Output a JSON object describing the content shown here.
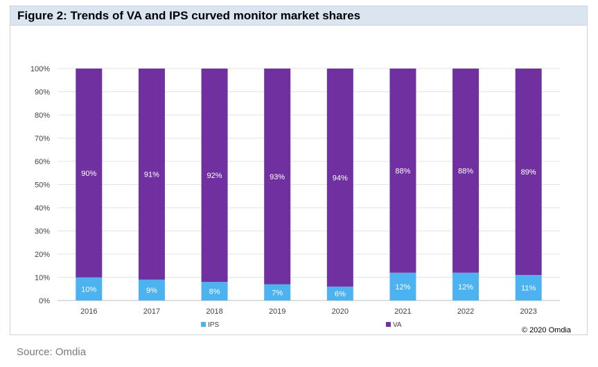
{
  "page": {
    "source": "Source: Omdia"
  },
  "chart_data": {
    "type": "bar",
    "stacked": true,
    "title": "Figure 2: Trends of VA and IPS curved monitor market shares",
    "xlabel": "",
    "ylabel": "",
    "ylim": [
      0,
      100
    ],
    "yticks": [
      "0%",
      "10%",
      "20%",
      "30%",
      "40%",
      "50%",
      "60%",
      "70%",
      "80%",
      "90%",
      "100%"
    ],
    "categories": [
      "2016",
      "2017",
      "2018",
      "2019",
      "2020",
      "2021",
      "2022",
      "2023"
    ],
    "series": [
      {
        "name": "IPS",
        "color": "#4db3f0",
        "values": [
          10,
          9,
          8,
          7,
          6,
          12,
          12,
          11
        ],
        "labels": [
          "10%",
          "9%",
          "8%",
          "7%",
          "6%",
          "12%",
          "12%",
          "11%"
        ]
      },
      {
        "name": "VA",
        "color": "#7030a0",
        "values": [
          90,
          91,
          92,
          93,
          94,
          88,
          88,
          89
        ],
        "labels": [
          "90%",
          "91%",
          "92%",
          "93%",
          "94%",
          "88%",
          "88%",
          "89%"
        ]
      }
    ],
    "grid": true,
    "legend": "bottom",
    "copyright": "© 2020 Omdia"
  }
}
